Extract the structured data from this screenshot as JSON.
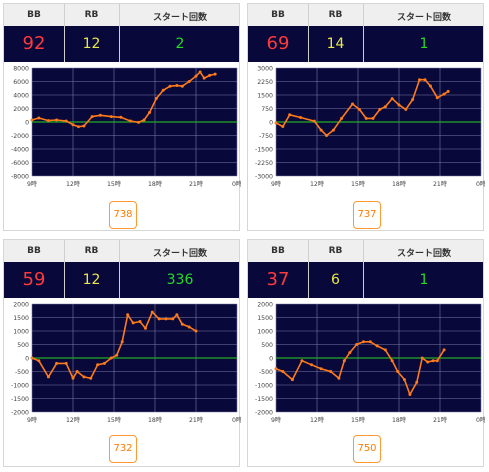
{
  "panels": [
    {
      "header": {
        "bb_label": "BB",
        "rb_label": "RB",
        "start_label": "スタート回数"
      },
      "bb": "92",
      "rb": "12",
      "start": "2",
      "total": "738",
      "chart_data": {
        "type": "line",
        "x_ticks": [
          "9時",
          "12時",
          "15時",
          "18時",
          "21時",
          "0時"
        ],
        "y_ticks": [
          "8000",
          "6000",
          "4000",
          "2000",
          "0",
          "-2000",
          "-4000",
          "-6000",
          "-8000"
        ],
        "ylim": [
          -8000,
          8000
        ],
        "xlim": [
          9,
          24
        ],
        "grid": true,
        "line_color": "#ff7a1a",
        "zero_line_color": "#22aa22",
        "points": [
          [
            9.0,
            300
          ],
          [
            9.5,
            600
          ],
          [
            10.2,
            200
          ],
          [
            10.8,
            300
          ],
          [
            11.5,
            150
          ],
          [
            12.0,
            -400
          ],
          [
            12.4,
            -700
          ],
          [
            12.8,
            -600
          ],
          [
            13.4,
            800
          ],
          [
            14.0,
            1000
          ],
          [
            14.8,
            800
          ],
          [
            15.5,
            700
          ],
          [
            16.2,
            150
          ],
          [
            16.8,
            -50
          ],
          [
            17.2,
            300
          ],
          [
            17.6,
            1400
          ],
          [
            18.1,
            3500
          ],
          [
            18.6,
            4700
          ],
          [
            19.1,
            5300
          ],
          [
            19.6,
            5400
          ],
          [
            20.0,
            5300
          ],
          [
            20.5,
            6000
          ],
          [
            21.0,
            6800
          ],
          [
            21.3,
            7400
          ],
          [
            21.6,
            6500
          ],
          [
            22.0,
            6900
          ],
          [
            22.4,
            7100
          ]
        ]
      }
    },
    {
      "header": {
        "bb_label": "BB",
        "rb_label": "RB",
        "start_label": "スタート回数"
      },
      "bb": "69",
      "rb": "14",
      "start": "1",
      "total": "737",
      "chart_data": {
        "type": "line",
        "x_ticks": [
          "9時",
          "12時",
          "15時",
          "18時",
          "21時",
          "0時"
        ],
        "y_ticks": [
          "3000",
          "2250",
          "1500",
          "750",
          "0",
          "-750",
          "-1500",
          "-2250",
          "-3000"
        ],
        "ylim": [
          -3000,
          3000
        ],
        "xlim": [
          9,
          24
        ],
        "grid": true,
        "line_color": "#ff7a1a",
        "zero_line_color": "#22aa22",
        "points": [
          [
            9.0,
            -50
          ],
          [
            9.5,
            -250
          ],
          [
            10.0,
            400
          ],
          [
            10.8,
            250
          ],
          [
            11.8,
            50
          ],
          [
            12.3,
            -450
          ],
          [
            12.7,
            -750
          ],
          [
            13.2,
            -450
          ],
          [
            13.8,
            200
          ],
          [
            14.6,
            1000
          ],
          [
            15.1,
            700
          ],
          [
            15.6,
            200
          ],
          [
            16.1,
            200
          ],
          [
            16.6,
            700
          ],
          [
            17.0,
            850
          ],
          [
            17.5,
            1300
          ],
          [
            18.0,
            950
          ],
          [
            18.5,
            700
          ],
          [
            19.0,
            1250
          ],
          [
            19.5,
            2350
          ],
          [
            19.9,
            2350
          ],
          [
            20.3,
            2000
          ],
          [
            20.8,
            1350
          ],
          [
            21.3,
            1550
          ],
          [
            21.6,
            1700
          ]
        ]
      }
    },
    {
      "header": {
        "bb_label": "BB",
        "rb_label": "RB",
        "start_label": "スタート回数"
      },
      "bb": "59",
      "rb": "12",
      "start": "336",
      "total": "732",
      "chart_data": {
        "type": "line",
        "x_ticks": [
          "9時",
          "12時",
          "15時",
          "18時",
          "21時",
          "0時"
        ],
        "y_ticks": [
          "2000",
          "1500",
          "1000",
          "500",
          "0",
          "-500",
          "-1000",
          "-1500",
          "-2000"
        ],
        "ylim": [
          -2000,
          2000
        ],
        "xlim": [
          9,
          24
        ],
        "grid": true,
        "line_color": "#ff7a1a",
        "zero_line_color": "#22aa22",
        "points": [
          [
            9.0,
            0
          ],
          [
            9.5,
            -100
          ],
          [
            10.2,
            -700
          ],
          [
            10.8,
            -200
          ],
          [
            11.5,
            -200
          ],
          [
            12.0,
            -750
          ],
          [
            12.3,
            -500
          ],
          [
            12.8,
            -700
          ],
          [
            13.3,
            -750
          ],
          [
            13.8,
            -250
          ],
          [
            14.3,
            -200
          ],
          [
            14.8,
            0
          ],
          [
            15.2,
            100
          ],
          [
            15.6,
            600
          ],
          [
            16.0,
            1600
          ],
          [
            16.4,
            1300
          ],
          [
            16.9,
            1350
          ],
          [
            17.3,
            1100
          ],
          [
            17.8,
            1700
          ],
          [
            18.3,
            1450
          ],
          [
            18.8,
            1450
          ],
          [
            19.3,
            1450
          ],
          [
            19.6,
            1600
          ],
          [
            20.0,
            1250
          ],
          [
            20.5,
            1150
          ],
          [
            21.0,
            1000
          ]
        ]
      }
    },
    {
      "header": {
        "bb_label": "BB",
        "rb_label": "RB",
        "start_label": "スタート回数"
      },
      "bb": "37",
      "rb": "6",
      "start": "1",
      "total": "750",
      "chart_data": {
        "type": "line",
        "x_ticks": [
          "9時",
          "12時",
          "15時",
          "18時",
          "21時",
          "0時"
        ],
        "y_ticks": [
          "2000",
          "1500",
          "1000",
          "500",
          "0",
          "-500",
          "-1000",
          "-1500",
          "-2000"
        ],
        "ylim": [
          -2000,
          2000
        ],
        "xlim": [
          9,
          24
        ],
        "grid": true,
        "line_color": "#ff7a1a",
        "zero_line_color": "#22aa22",
        "points": [
          [
            9.0,
            -400
          ],
          [
            9.5,
            -500
          ],
          [
            10.2,
            -800
          ],
          [
            10.9,
            -100
          ],
          [
            11.6,
            -250
          ],
          [
            12.3,
            -400
          ],
          [
            13.0,
            -500
          ],
          [
            13.6,
            -750
          ],
          [
            14.0,
            -100
          ],
          [
            14.4,
            200
          ],
          [
            14.9,
            500
          ],
          [
            15.4,
            600
          ],
          [
            15.9,
            600
          ],
          [
            16.4,
            450
          ],
          [
            17.0,
            300
          ],
          [
            17.5,
            -100
          ],
          [
            17.9,
            -500
          ],
          [
            18.4,
            -800
          ],
          [
            18.8,
            -1350
          ],
          [
            19.3,
            -900
          ],
          [
            19.7,
            0
          ],
          [
            20.1,
            -150
          ],
          [
            20.5,
            -100
          ],
          [
            20.8,
            -100
          ],
          [
            21.3,
            300
          ]
        ]
      }
    }
  ]
}
